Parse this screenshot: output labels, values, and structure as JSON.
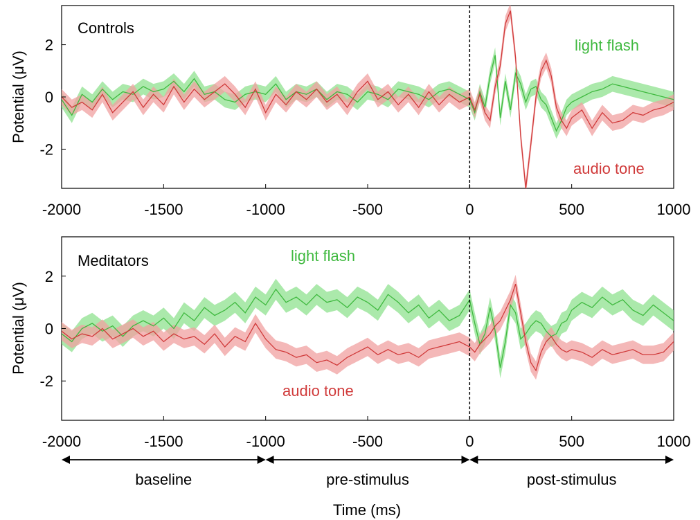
{
  "colors": {
    "light_flash": "#3fb93f",
    "light_flash_band": "#8fe28f",
    "audio_tone": "#d03a3a",
    "audio_tone_band": "#f0a0a0",
    "axis": "#000000"
  },
  "chart_data": [
    {
      "type": "line",
      "title": "Controls",
      "xlabel": "",
      "ylabel": "Potential (μV)",
      "xlim": [
        -2000,
        1000
      ],
      "ylim": [
        -3.5,
        3.5
      ],
      "x_ticks": [
        -2000,
        -1500,
        -1000,
        -500,
        0,
        500,
        1000
      ],
      "x_tick_labels": [
        "-2000",
        "-1500",
        "-1000",
        "-500",
        "0",
        "500",
        "1000"
      ],
      "y_ticks": [
        -2,
        0,
        2
      ],
      "y_tick_labels": [
        "-2",
        "0",
        "2"
      ],
      "stimulus_onset": 0,
      "x": [
        -2000,
        -1950,
        -1900,
        -1850,
        -1800,
        -1750,
        -1700,
        -1650,
        -1600,
        -1550,
        -1500,
        -1450,
        -1400,
        -1350,
        -1300,
        -1250,
        -1200,
        -1150,
        -1100,
        -1050,
        -1000,
        -950,
        -900,
        -850,
        -800,
        -750,
        -700,
        -650,
        -600,
        -550,
        -500,
        -450,
        -400,
        -350,
        -300,
        -250,
        -200,
        -150,
        -100,
        -50,
        0,
        25,
        50,
        75,
        100,
        125,
        150,
        175,
        200,
        225,
        250,
        275,
        300,
        325,
        350,
        375,
        400,
        425,
        450,
        475,
        500,
        550,
        600,
        650,
        700,
        750,
        800,
        850,
        900,
        950,
        1000
      ],
      "series": [
        {
          "name": "light flash",
          "values": [
            -0.1,
            -0.7,
            0.1,
            -0.2,
            0.3,
            -0.1,
            0.2,
            0.1,
            0.4,
            0.2,
            0.3,
            0.6,
            0.2,
            0.7,
            0.1,
            0.2,
            -0.1,
            -0.2,
            0.1,
            0.2,
            0.1,
            0.5,
            -0.1,
            0.2,
            0.1,
            0.3,
            -0.1,
            0.2,
            0.1,
            -0.2,
            0.2,
            0.1,
            -0.1,
            0.3,
            0.2,
            0.1,
            -0.1,
            0.2,
            0.3,
            0.1,
            -0.1,
            -0.6,
            0.2,
            -0.4,
            0.8,
            1.6,
            -0.8,
            0.6,
            -0.5,
            0.9,
            0.5,
            -0.2,
            0.3,
            0.4,
            -0.1,
            -0.3,
            -0.8,
            -1.3,
            -0.9,
            -0.4,
            -0.2,
            0.0,
            0.2,
            0.3,
            0.5,
            0.4,
            0.3,
            0.2,
            0.1,
            0.0,
            -0.1
          ],
          "band": 0.3
        },
        {
          "name": "audio tone",
          "values": [
            0.0,
            -0.4,
            -0.2,
            -0.5,
            0.1,
            -0.6,
            -0.2,
            0.2,
            -0.4,
            0.1,
            -0.3,
            0.4,
            -0.2,
            0.3,
            -0.1,
            0.2,
            0.5,
            0.1,
            -0.4,
            0.3,
            -0.6,
            0.1,
            -0.3,
            0.2,
            -0.1,
            0.3,
            -0.2,
            0.1,
            -0.4,
            0.2,
            0.6,
            -0.1,
            0.2,
            -0.3,
            0.1,
            -0.4,
            0.2,
            -0.3,
            0.1,
            -0.2,
            0.0,
            -0.5,
            0.1,
            -0.6,
            -0.9,
            0.4,
            1.2,
            2.8,
            3.3,
            1.5,
            -1.5,
            -3.5,
            -1.8,
            0.0,
            1.0,
            1.4,
            0.8,
            -0.4,
            -0.9,
            -1.2,
            -0.8,
            -0.5,
            -1.2,
            -0.6,
            -1.0,
            -0.9,
            -0.6,
            -0.7,
            -0.5,
            -0.4,
            -0.2
          ],
          "band": 0.3
        }
      ],
      "annotations": [
        {
          "text": "light flash",
          "series": "light flash"
        },
        {
          "text": "audio tone",
          "series": "audio tone"
        }
      ]
    },
    {
      "type": "line",
      "title": "Meditators",
      "xlabel": "Time (ms)",
      "ylabel": "Potential (μV)",
      "xlim": [
        -2000,
        1000
      ],
      "ylim": [
        -3.5,
        3.5
      ],
      "x_ticks": [
        -2000,
        -1500,
        -1000,
        -500,
        0,
        500,
        1000
      ],
      "x_tick_labels": [
        "-2000",
        "-1500",
        "-1000",
        "-500",
        "0",
        "500",
        "1000"
      ],
      "y_ticks": [
        -2,
        0,
        2
      ],
      "y_tick_labels": [
        "-2",
        "0",
        "2"
      ],
      "stimulus_onset": 0,
      "x": [
        -2000,
        -1950,
        -1900,
        -1850,
        -1800,
        -1750,
        -1700,
        -1650,
        -1600,
        -1550,
        -1500,
        -1450,
        -1400,
        -1350,
        -1300,
        -1250,
        -1200,
        -1150,
        -1100,
        -1050,
        -1000,
        -950,
        -900,
        -850,
        -800,
        -750,
        -700,
        -650,
        -600,
        -550,
        -500,
        -450,
        -400,
        -350,
        -300,
        -250,
        -200,
        -150,
        -100,
        -50,
        0,
        25,
        50,
        75,
        100,
        125,
        150,
        175,
        200,
        225,
        250,
        275,
        300,
        325,
        350,
        375,
        400,
        425,
        450,
        475,
        500,
        550,
        600,
        650,
        700,
        750,
        800,
        850,
        900,
        950,
        1000
      ],
      "series": [
        {
          "name": "light flash",
          "values": [
            -0.2,
            -0.5,
            0.0,
            0.2,
            -0.1,
            0.1,
            -0.3,
            0.1,
            0.3,
            0.1,
            0.4,
            0.0,
            0.6,
            0.3,
            0.8,
            0.5,
            0.7,
            1.0,
            0.6,
            1.2,
            0.9,
            1.5,
            1.0,
            1.2,
            0.9,
            1.3,
            1.0,
            1.1,
            0.8,
            1.2,
            1.0,
            0.7,
            1.3,
            1.0,
            0.6,
            0.9,
            0.4,
            0.7,
            0.3,
            0.5,
            1.1,
            0.2,
            -0.6,
            -0.2,
            0.8,
            -0.1,
            -1.5,
            -0.5,
            0.9,
            0.6,
            -0.4,
            -0.2,
            0.1,
            0.3,
            0.2,
            -0.1,
            -0.3,
            -0.2,
            0.2,
            0.3,
            0.7,
            1.0,
            0.8,
            1.2,
            0.9,
            1.1,
            0.7,
            0.5,
            0.9,
            0.6,
            0.3
          ],
          "band": 0.4
        },
        {
          "name": "audio tone",
          "values": [
            -0.1,
            -0.4,
            -0.2,
            -0.3,
            0.0,
            -0.4,
            -0.2,
            0.0,
            -0.3,
            -0.1,
            -0.5,
            -0.2,
            -0.4,
            -0.3,
            -0.6,
            -0.2,
            -0.7,
            -0.3,
            -0.5,
            0.2,
            -0.4,
            -0.8,
            -0.9,
            -1.1,
            -1.0,
            -1.3,
            -1.2,
            -1.4,
            -1.1,
            -0.9,
            -0.7,
            -1.0,
            -0.8,
            -1.0,
            -0.9,
            -1.1,
            -0.8,
            -0.7,
            -0.6,
            -0.5,
            -0.7,
            -0.9,
            -0.6,
            -0.4,
            -0.2,
            0.1,
            0.3,
            0.7,
            1.1,
            1.7,
            0.6,
            -0.5,
            -1.3,
            -1.6,
            -0.9,
            -0.5,
            -0.3,
            -0.6,
            -0.8,
            -0.9,
            -0.8,
            -0.9,
            -1.1,
            -0.8,
            -1.0,
            -0.9,
            -0.8,
            -1.0,
            -1.0,
            -0.9,
            -0.5
          ],
          "band": 0.35
        }
      ],
      "annotations": [
        {
          "text": "light flash",
          "series": "light flash"
        },
        {
          "text": "audio tone",
          "series": "audio tone"
        }
      ]
    }
  ],
  "phases": [
    {
      "label": "baseline",
      "from": -2000,
      "to": -1000
    },
    {
      "label": "pre-stimulus",
      "from": -1000,
      "to": 0
    },
    {
      "label": "post-stimulus",
      "from": 0,
      "to": 1000
    }
  ]
}
